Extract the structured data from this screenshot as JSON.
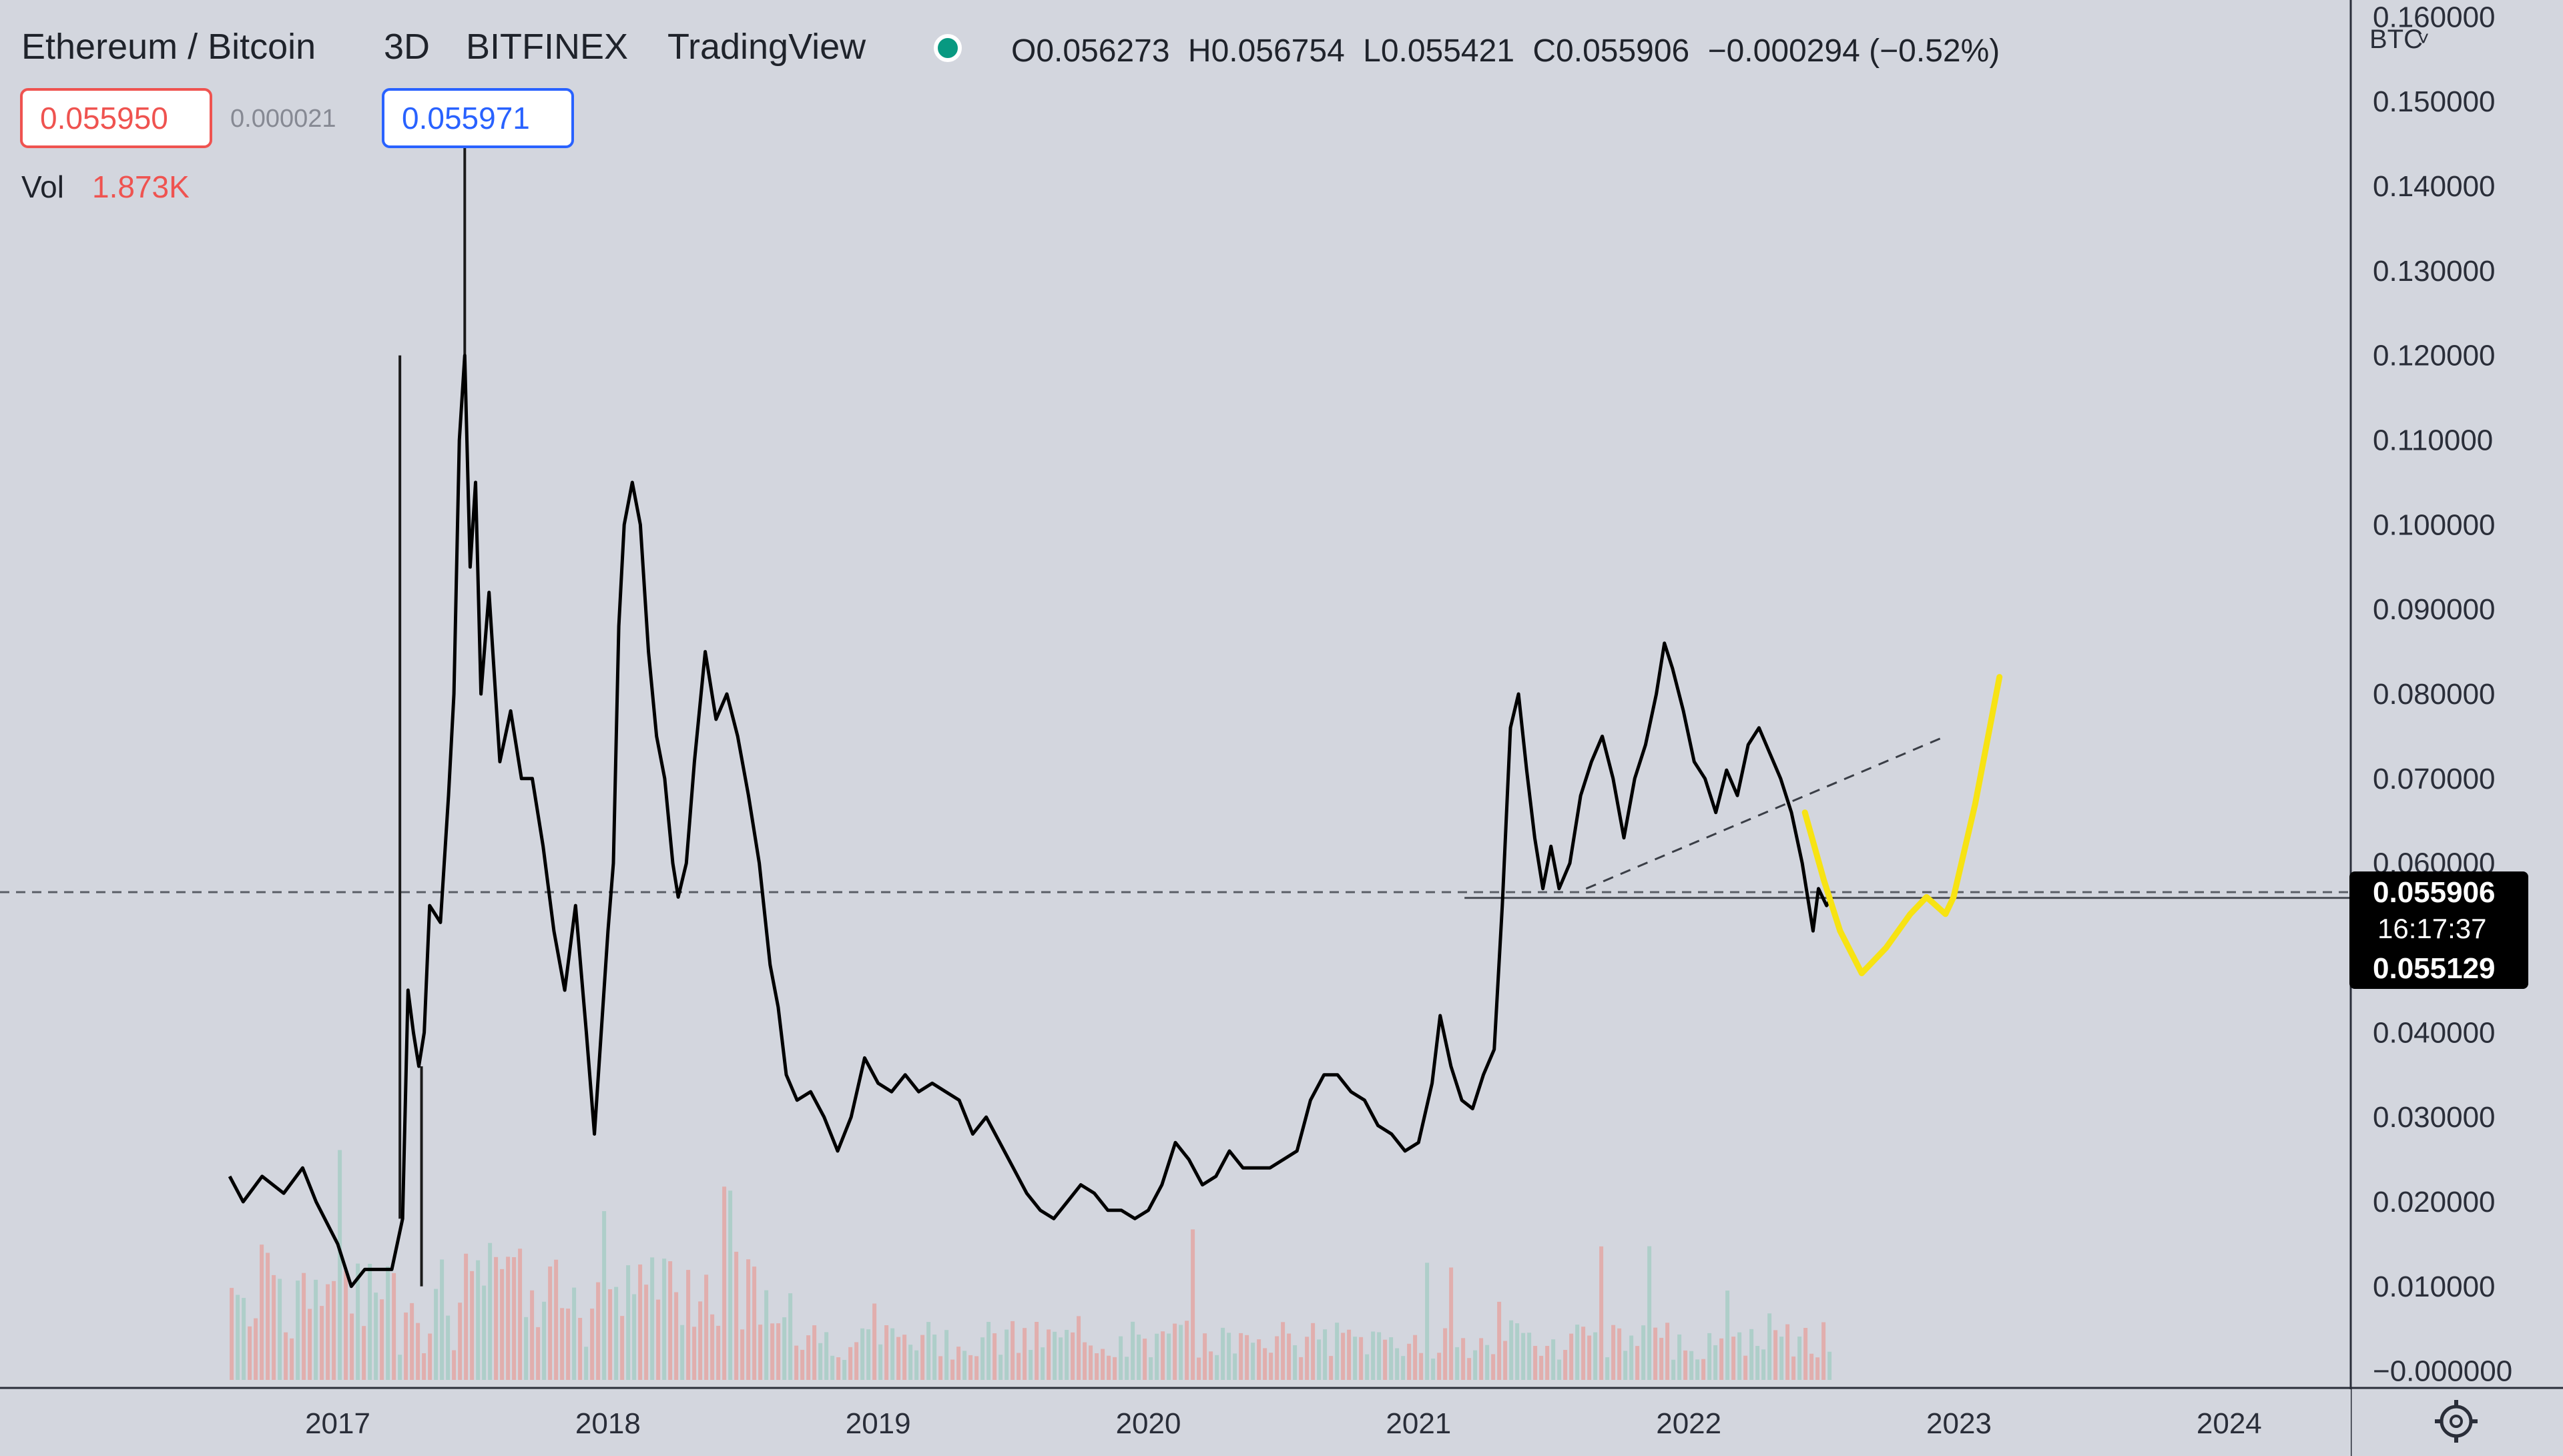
{
  "header": {
    "symbol": "Ethereum / Bitcoin",
    "interval": "3D",
    "exchange": "BITFINEX",
    "source": "TradingView",
    "ohlc": {
      "open_label": "O",
      "open": "0.056273",
      "high_label": "H",
      "high": "0.056754",
      "low_label": "L",
      "low": "0.055421",
      "close_label": "C",
      "close": "0.055906",
      "change": "−0.000294 (−0.52%)"
    }
  },
  "quote": {
    "bid": "0.055950",
    "spread": "0.000021",
    "ask": "0.055971"
  },
  "volume": {
    "label": "Vol",
    "value": "1.873K"
  },
  "price_axis": {
    "currency": "BTC",
    "ticks": [
      "0.160000",
      "0.150000",
      "0.140000",
      "0.130000",
      "0.120000",
      "0.110000",
      "0.100000",
      "0.090000",
      "0.080000",
      "0.070000",
      "0.060000",
      "0.050000",
      "0.040000",
      "0.030000",
      "0.020000",
      "0.010000",
      "−0.000000"
    ],
    "last_price_tag": {
      "price": "0.055906",
      "countdown": "16:17:37",
      "second_price": "0.055129"
    }
  },
  "colors": {
    "background": "#d3d6de",
    "price_line": "#000000",
    "projection": "#f7e313",
    "volume_up": "#a7ccc6",
    "volume_down": "#e3a7a4",
    "bid_border": "#ef5350",
    "ask_border": "#2962ff",
    "status_dot": "#089981"
  },
  "chart_data": {
    "type": "line",
    "ylim": [
      -0.002,
      0.162
    ],
    "xlim": [
      2015.75,
      2024.45
    ],
    "x_ticks": [
      2017,
      2018,
      2019,
      2020,
      2021,
      2022,
      2023,
      2024
    ],
    "x_tick_labels": [
      "2017",
      "2018",
      "2019",
      "2020",
      "2021",
      "2022",
      "2023",
      "2024"
    ],
    "series": [
      {
        "role": "price",
        "points": [
          [
            2016.6,
            0.023
          ],
          [
            2016.65,
            0.02
          ],
          [
            2016.72,
            0.023
          ],
          [
            2016.8,
            0.021
          ],
          [
            2016.87,
            0.024
          ],
          [
            2016.92,
            0.02
          ],
          [
            2017.0,
            0.015
          ],
          [
            2017.05,
            0.01
          ],
          [
            2017.1,
            0.012
          ],
          [
            2017.15,
            0.012
          ],
          [
            2017.2,
            0.012
          ],
          [
            2017.24,
            0.018
          ],
          [
            2017.26,
            0.045
          ],
          [
            2017.28,
            0.04
          ],
          [
            2017.3,
            0.036
          ],
          [
            2017.32,
            0.04
          ],
          [
            2017.34,
            0.055
          ],
          [
            2017.38,
            0.053
          ],
          [
            2017.41,
            0.068
          ],
          [
            2017.43,
            0.08
          ],
          [
            2017.45,
            0.11
          ],
          [
            2017.47,
            0.12
          ],
          [
            2017.49,
            0.095
          ],
          [
            2017.51,
            0.105
          ],
          [
            2017.53,
            0.08
          ],
          [
            2017.56,
            0.092
          ],
          [
            2017.6,
            0.072
          ],
          [
            2017.64,
            0.078
          ],
          [
            2017.68,
            0.07
          ],
          [
            2017.72,
            0.07
          ],
          [
            2017.76,
            0.062
          ],
          [
            2017.8,
            0.052
          ],
          [
            2017.84,
            0.045
          ],
          [
            2017.88,
            0.055
          ],
          [
            2017.92,
            0.04
          ],
          [
            2017.95,
            0.028
          ],
          [
            2018.0,
            0.052
          ],
          [
            2018.02,
            0.06
          ],
          [
            2018.04,
            0.088
          ],
          [
            2018.06,
            0.1
          ],
          [
            2018.09,
            0.105
          ],
          [
            2018.12,
            0.1
          ],
          [
            2018.15,
            0.085
          ],
          [
            2018.18,
            0.075
          ],
          [
            2018.21,
            0.07
          ],
          [
            2018.24,
            0.06
          ],
          [
            2018.26,
            0.056
          ],
          [
            2018.29,
            0.06
          ],
          [
            2018.32,
            0.072
          ],
          [
            2018.36,
            0.085
          ],
          [
            2018.4,
            0.077
          ],
          [
            2018.44,
            0.08
          ],
          [
            2018.48,
            0.075
          ],
          [
            2018.52,
            0.068
          ],
          [
            2018.56,
            0.06
          ],
          [
            2018.6,
            0.048
          ],
          [
            2018.63,
            0.043
          ],
          [
            2018.66,
            0.035
          ],
          [
            2018.7,
            0.032
          ],
          [
            2018.75,
            0.033
          ],
          [
            2018.8,
            0.03
          ],
          [
            2018.85,
            0.026
          ],
          [
            2018.9,
            0.03
          ],
          [
            2018.95,
            0.037
          ],
          [
            2019.0,
            0.034
          ],
          [
            2019.05,
            0.033
          ],
          [
            2019.1,
            0.035
          ],
          [
            2019.15,
            0.033
          ],
          [
            2019.2,
            0.034
          ],
          [
            2019.25,
            0.033
          ],
          [
            2019.3,
            0.032
          ],
          [
            2019.35,
            0.028
          ],
          [
            2019.4,
            0.03
          ],
          [
            2019.45,
            0.027
          ],
          [
            2019.5,
            0.024
          ],
          [
            2019.55,
            0.021
          ],
          [
            2019.6,
            0.019
          ],
          [
            2019.65,
            0.018
          ],
          [
            2019.7,
            0.02
          ],
          [
            2019.75,
            0.022
          ],
          [
            2019.8,
            0.021
          ],
          [
            2019.85,
            0.019
          ],
          [
            2019.9,
            0.019
          ],
          [
            2019.95,
            0.018
          ],
          [
            2020.0,
            0.019
          ],
          [
            2020.05,
            0.022
          ],
          [
            2020.1,
            0.027
          ],
          [
            2020.15,
            0.025
          ],
          [
            2020.2,
            0.022
          ],
          [
            2020.25,
            0.023
          ],
          [
            2020.3,
            0.026
          ],
          [
            2020.35,
            0.024
          ],
          [
            2020.4,
            0.024
          ],
          [
            2020.45,
            0.024
          ],
          [
            2020.5,
            0.025
          ],
          [
            2020.55,
            0.026
          ],
          [
            2020.6,
            0.032
          ],
          [
            2020.65,
            0.035
          ],
          [
            2020.7,
            0.035
          ],
          [
            2020.75,
            0.033
          ],
          [
            2020.8,
            0.032
          ],
          [
            2020.85,
            0.029
          ],
          [
            2020.9,
            0.028
          ],
          [
            2020.95,
            0.026
          ],
          [
            2021.0,
            0.027
          ],
          [
            2021.05,
            0.034
          ],
          [
            2021.08,
            0.042
          ],
          [
            2021.12,
            0.036
          ],
          [
            2021.16,
            0.032
          ],
          [
            2021.2,
            0.031
          ],
          [
            2021.24,
            0.035
          ],
          [
            2021.28,
            0.038
          ],
          [
            2021.31,
            0.055
          ],
          [
            2021.34,
            0.076
          ],
          [
            2021.37,
            0.08
          ],
          [
            2021.4,
            0.071
          ],
          [
            2021.43,
            0.063
          ],
          [
            2021.46,
            0.057
          ],
          [
            2021.49,
            0.062
          ],
          [
            2021.52,
            0.057
          ],
          [
            2021.56,
            0.06
          ],
          [
            2021.6,
            0.068
          ],
          [
            2021.64,
            0.072
          ],
          [
            2021.68,
            0.075
          ],
          [
            2021.72,
            0.07
          ],
          [
            2021.76,
            0.063
          ],
          [
            2021.8,
            0.07
          ],
          [
            2021.84,
            0.074
          ],
          [
            2021.88,
            0.08
          ],
          [
            2021.91,
            0.086
          ],
          [
            2021.94,
            0.083
          ],
          [
            2021.98,
            0.078
          ],
          [
            2022.02,
            0.072
          ],
          [
            2022.06,
            0.07
          ],
          [
            2022.1,
            0.066
          ],
          [
            2022.14,
            0.071
          ],
          [
            2022.18,
            0.068
          ],
          [
            2022.22,
            0.074
          ],
          [
            2022.26,
            0.076
          ],
          [
            2022.3,
            0.073
          ],
          [
            2022.34,
            0.07
          ],
          [
            2022.38,
            0.066
          ],
          [
            2022.42,
            0.06
          ],
          [
            2022.46,
            0.052
          ],
          [
            2022.48,
            0.057
          ],
          [
            2022.51,
            0.055
          ],
          [
            2022.53,
            0.056
          ]
        ]
      },
      {
        "role": "projection",
        "points": [
          [
            2022.43,
            0.066
          ],
          [
            2022.5,
            0.058
          ],
          [
            2022.56,
            0.052
          ],
          [
            2022.64,
            0.047
          ],
          [
            2022.73,
            0.05
          ],
          [
            2022.82,
            0.054
          ],
          [
            2022.88,
            0.056
          ],
          [
            2022.95,
            0.054
          ],
          [
            2022.98,
            0.056
          ],
          [
            2023.06,
            0.067
          ],
          [
            2023.15,
            0.082
          ]
        ]
      }
    ],
    "trendline": {
      "x1": 2021.62,
      "y1": 0.057,
      "x2": 2022.95,
      "y2": 0.075
    },
    "horizontal_level": {
      "y": 0.0559,
      "x_start": 2021.17
    },
    "spikes": [
      [
        2017.23,
        0.12
      ],
      [
        2017.31,
        0.01
      ],
      [
        2017.47,
        0.15
      ]
    ]
  }
}
